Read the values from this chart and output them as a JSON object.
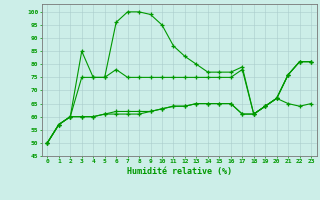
{
  "xlabel": "Humidité relative (%)",
  "background_color": "#cceee8",
  "grid_color": "#aacccc",
  "line_color": "#009900",
  "xlim": [
    -0.5,
    23.5
  ],
  "ylim": [
    45,
    103
  ],
  "yticks": [
    45,
    50,
    55,
    60,
    65,
    70,
    75,
    80,
    85,
    90,
    95,
    100
  ],
  "xticks": [
    0,
    1,
    2,
    3,
    4,
    5,
    6,
    7,
    8,
    9,
    10,
    11,
    12,
    13,
    14,
    15,
    16,
    17,
    18,
    19,
    20,
    21,
    22,
    23
  ],
  "series": [
    {
      "x": [
        0,
        1,
        2,
        3,
        4,
        5,
        6,
        7,
        8,
        9,
        10,
        11,
        12,
        13,
        14,
        15,
        16,
        17,
        18,
        19,
        20,
        21,
        22,
        23
      ],
      "y": [
        50,
        57,
        60,
        85,
        75,
        75,
        96,
        100,
        100,
        99,
        95,
        87,
        83,
        80,
        77,
        77,
        77,
        79,
        61,
        64,
        67,
        76,
        81,
        81
      ]
    },
    {
      "x": [
        0,
        1,
        2,
        3,
        4,
        5,
        6,
        7,
        8,
        9,
        10,
        11,
        12,
        13,
        14,
        15,
        16,
        17,
        18,
        19,
        20,
        21,
        22,
        23
      ],
      "y": [
        50,
        57,
        60,
        75,
        75,
        75,
        78,
        75,
        75,
        75,
        75,
        75,
        75,
        75,
        75,
        75,
        75,
        78,
        61,
        64,
        67,
        76,
        81,
        81
      ]
    },
    {
      "x": [
        0,
        1,
        2,
        3,
        4,
        5,
        6,
        7,
        8,
        9,
        10,
        11,
        12,
        13,
        14,
        15,
        16,
        17,
        18,
        19,
        20,
        21,
        22,
        23
      ],
      "y": [
        50,
        57,
        60,
        60,
        60,
        61,
        61,
        61,
        61,
        62,
        63,
        64,
        64,
        65,
        65,
        65,
        65,
        61,
        61,
        64,
        67,
        76,
        81,
        81
      ]
    },
    {
      "x": [
        0,
        1,
        2,
        3,
        4,
        5,
        6,
        7,
        8,
        9,
        10,
        11,
        12,
        13,
        14,
        15,
        16,
        17,
        18,
        19,
        20,
        21,
        22,
        23
      ],
      "y": [
        50,
        57,
        60,
        60,
        60,
        61,
        62,
        62,
        62,
        62,
        63,
        64,
        64,
        65,
        65,
        65,
        65,
        61,
        61,
        64,
        67,
        65,
        64,
        65
      ]
    }
  ]
}
